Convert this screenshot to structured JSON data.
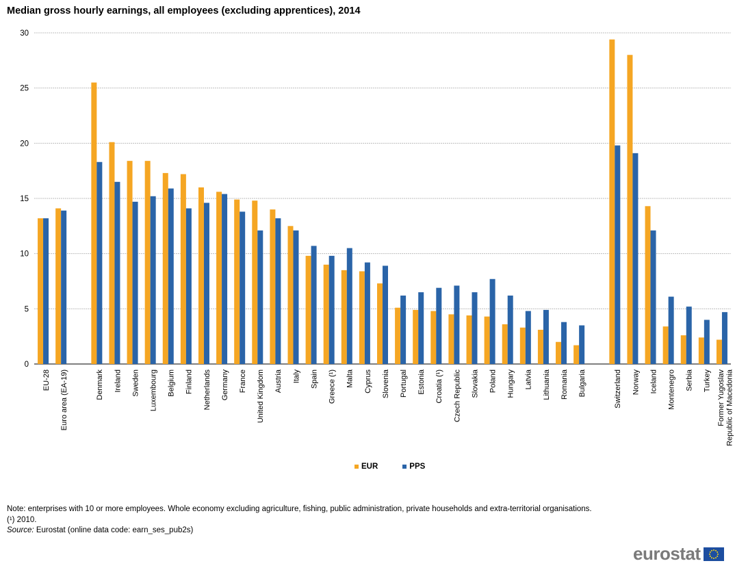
{
  "chart_data": {
    "type": "bar",
    "title": "Median gross hourly earnings, all employees (excluding apprentices), 2014",
    "xlabel": "",
    "ylabel": "",
    "ylim": [
      0,
      30
    ],
    "yticks": [
      0,
      5,
      10,
      15,
      20,
      25,
      30
    ],
    "grid": true,
    "legend_position": "bottom",
    "groups": [
      [
        "EU-28",
        "Euro area (EA-19)"
      ],
      [
        "Denmark",
        "Ireland",
        "Sweden",
        "Luxembourg",
        "Belgium",
        "Finland",
        "Netherlands",
        "Germany",
        "France",
        "United Kingdom",
        "Austria",
        "Italy",
        "Spain",
        "Greece (¹)",
        "Malta",
        "Cyprus",
        "Slovenia",
        "Portugal",
        "Estonia",
        "Croatia (¹)",
        "Czech Republic",
        "Slovakia",
        "Poland",
        "Hungary",
        "Latvia",
        "Lithuania",
        "Romania",
        "Bulgaria"
      ],
      [
        "Switzerland",
        "Norway",
        "Iceland",
        "Montenegro",
        "Serbia",
        "Turkey",
        "Former Yugoslav Republic of Macedonia"
      ]
    ],
    "categories": [
      "EU-28",
      "Euro area (EA-19)",
      "Denmark",
      "Ireland",
      "Sweden",
      "Luxembourg",
      "Belgium",
      "Finland",
      "Netherlands",
      "Germany",
      "France",
      "United Kingdom",
      "Austria",
      "Italy",
      "Spain",
      "Greece (¹)",
      "Malta",
      "Cyprus",
      "Slovenia",
      "Portugal",
      "Estonia",
      "Croatia (¹)",
      "Czech Republic",
      "Slovakia",
      "Poland",
      "Hungary",
      "Latvia",
      "Lithuania",
      "Romania",
      "Bulgaria",
      "Switzerland",
      "Norway",
      "Iceland",
      "Montenegro",
      "Serbia",
      "Turkey",
      "Former Yugoslav Republic of Macedonia"
    ],
    "series": [
      {
        "name": "EUR",
        "color": "#f5a623",
        "values": [
          13.2,
          14.1,
          25.5,
          20.1,
          18.4,
          18.4,
          17.3,
          17.2,
          16.0,
          15.6,
          14.9,
          14.8,
          14.0,
          12.5,
          9.8,
          9.0,
          8.5,
          8.4,
          7.3,
          5.1,
          4.9,
          4.8,
          4.5,
          4.4,
          4.3,
          3.6,
          3.3,
          3.1,
          2.0,
          1.7,
          29.4,
          28.0,
          14.3,
          3.4,
          2.6,
          2.4,
          2.2
        ]
      },
      {
        "name": "PPS",
        "color": "#2a64a8",
        "values": [
          13.2,
          13.9,
          18.3,
          16.5,
          14.7,
          15.2,
          15.9,
          14.1,
          14.6,
          15.4,
          13.8,
          12.1,
          13.2,
          12.1,
          10.7,
          9.8,
          10.5,
          9.2,
          8.9,
          6.2,
          6.5,
          6.9,
          7.1,
          6.5,
          7.7,
          6.2,
          4.8,
          4.9,
          3.8,
          3.5,
          19.8,
          19.1,
          12.1,
          6.1,
          5.2,
          4.0,
          4.7
        ]
      }
    ]
  },
  "legend": {
    "eur": "EUR",
    "pps": "PPS"
  },
  "notes": {
    "line1": "Note: enterprises with 10 or more employees. Whole economy excluding agriculture, fishing, public administration, private households and extra-territorial organisations.",
    "line2": "(¹) 2010.",
    "source_label": "Source:",
    "source_text": " Eurostat (online data code: earn_ses_pub2s)"
  },
  "logo": {
    "text": "eurostat"
  }
}
